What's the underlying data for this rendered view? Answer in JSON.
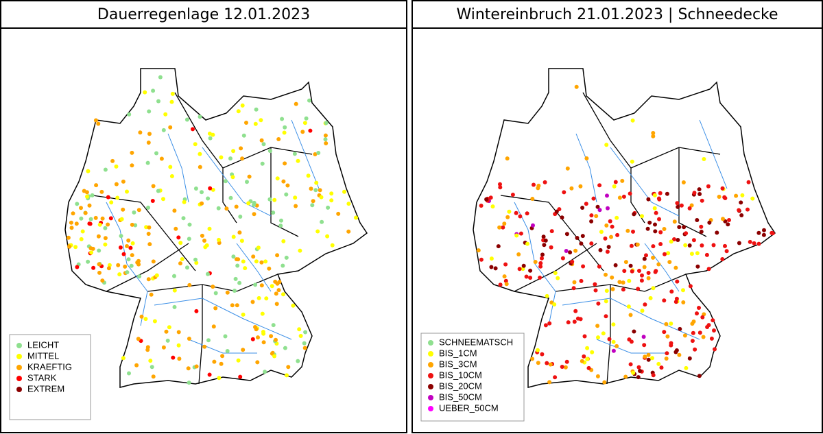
{
  "panels": [
    {
      "title": "Dauerregenlage 12.01.2023",
      "legend": [
        {
          "label": "LEICHT",
          "color": "#8fe08f"
        },
        {
          "label": "MITTEL",
          "color": "#ffff00"
        },
        {
          "label": "KRAEFTIG",
          "color": "#ffa500"
        },
        {
          "label": "STARK",
          "color": "#ff0000"
        },
        {
          "label": "EXTREM",
          "color": "#8b0000"
        }
      ]
    },
    {
      "title": "Wintereinbruch 21.01.2023 | Schneedecke",
      "legend": [
        {
          "label": "SCHNEEMATSCH",
          "color": "#8fe08f"
        },
        {
          "label": "BIS_1CM",
          "color": "#ffff00"
        },
        {
          "label": "BIS_3CM",
          "color": "#ffa500"
        },
        {
          "label": "BIS_10CM",
          "color": "#ee1111"
        },
        {
          "label": "BIS_20CM",
          "color": "#8b0000"
        },
        {
          "label": "BIS_50CM",
          "color": "#c000c0"
        },
        {
          "label": "UEBER_50CM",
          "color": "#ff00ff"
        }
      ]
    }
  ]
}
